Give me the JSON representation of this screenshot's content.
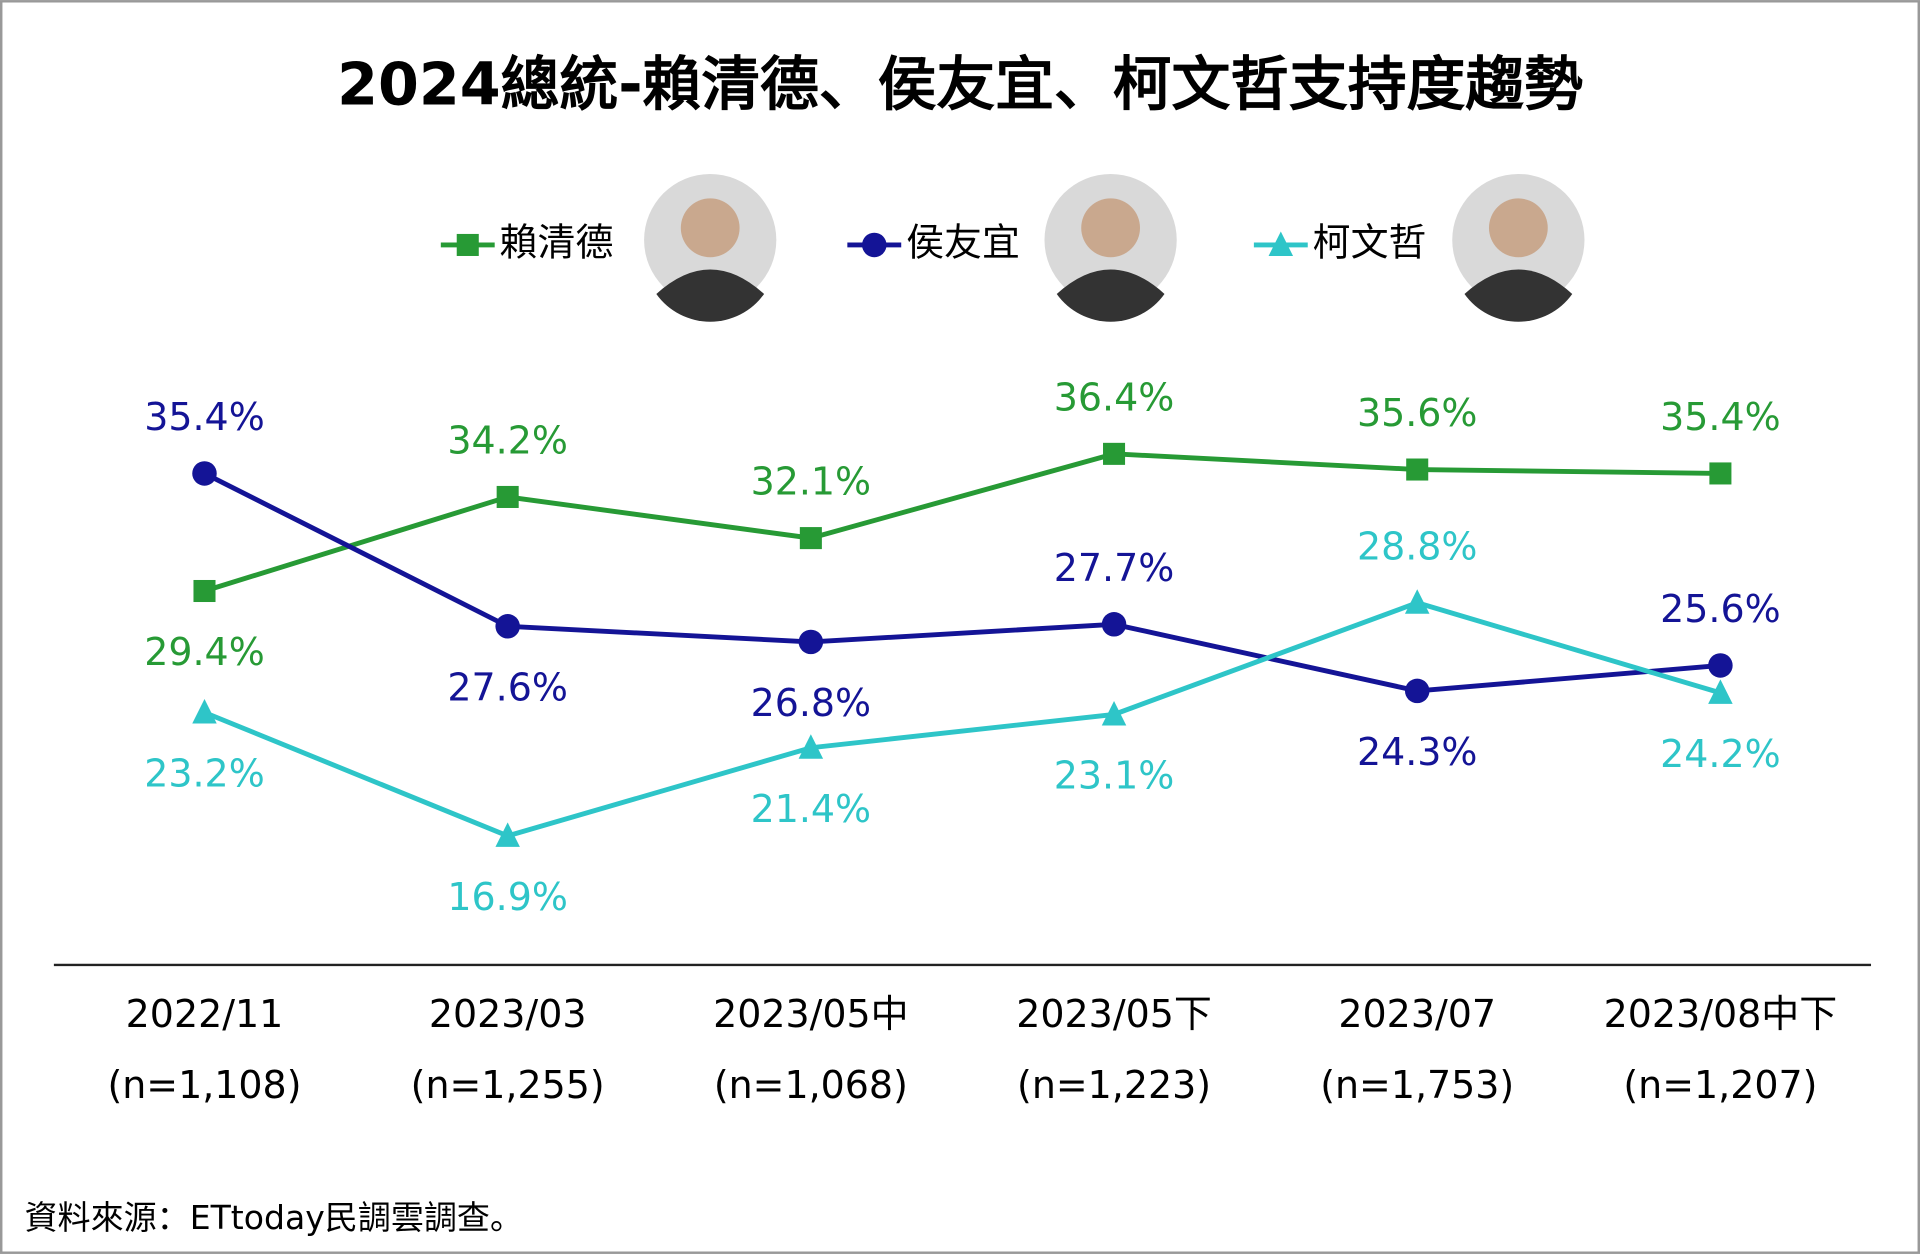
{
  "chart_data": {
    "type": "line",
    "title": "2024總統-賴清德、侯友宜、柯文哲支持度趨勢",
    "categories": [
      "2022/11",
      "2023/03",
      "2023/05中",
      "2023/05下",
      "2023/07",
      "2023/08中下"
    ],
    "category_notes": [
      "(n=1,108)",
      "(n=1,255)",
      "(n=1,068)",
      "(n=1,223)",
      "(n=1,753)",
      "(n=1,207)"
    ],
    "series": [
      {
        "name": "賴清德",
        "color": "#279a35",
        "marker": "square",
        "values": [
          29.4,
          34.2,
          32.1,
          36.4,
          35.6,
          35.4
        ],
        "value_labels": [
          "29.4%",
          "34.2%",
          "32.1%",
          "36.4%",
          "35.6%",
          "35.4%"
        ]
      },
      {
        "name": "侯友宜",
        "color": "#141496",
        "marker": "circle",
        "values": [
          35.4,
          27.6,
          26.8,
          27.7,
          24.3,
          25.6
        ],
        "value_labels": [
          "35.4%",
          "27.6%",
          "26.8%",
          "27.7%",
          "24.3%",
          "25.6%"
        ]
      },
      {
        "name": "柯文哲",
        "color": "#2ec5c8",
        "marker": "triangle",
        "values": [
          23.2,
          16.9,
          21.4,
          23.1,
          28.8,
          24.2
        ],
        "value_labels": [
          "23.2%",
          "16.9%",
          "21.4%",
          "23.1%",
          "28.8%",
          "24.2%"
        ]
      }
    ],
    "source": "資料來源：ETtoday民調雲調查。"
  }
}
